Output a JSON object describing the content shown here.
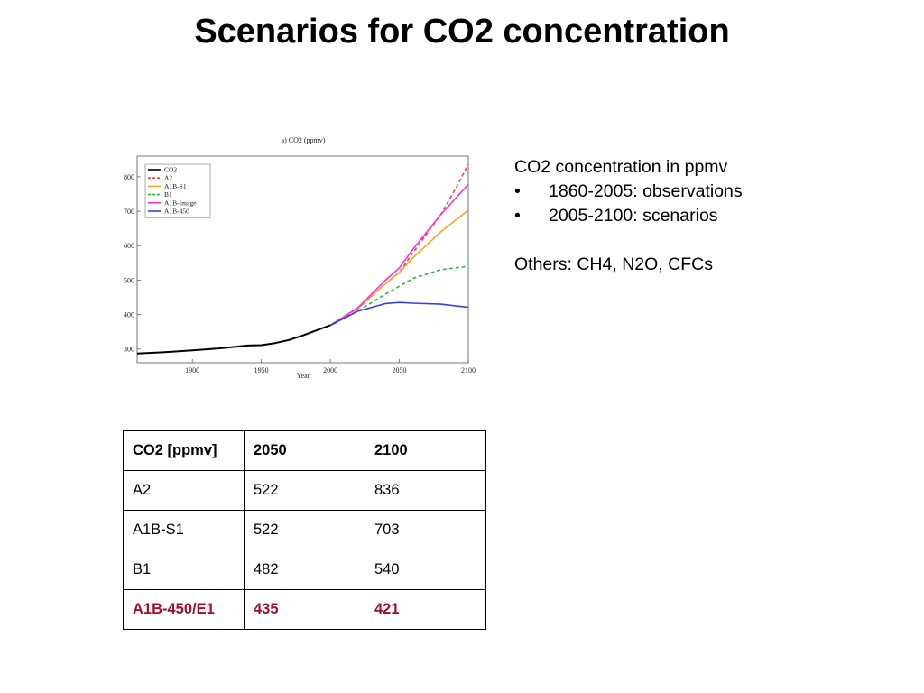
{
  "slide": {
    "title": "Scenarios for CO2 concentration"
  },
  "notes": {
    "heading": "CO2 concentration in ppmv",
    "bullets": [
      "1860-2005: observations",
      "2005-2100: scenarios"
    ],
    "bullet_symbol": "•",
    "others": "Others: CH4, N2O, CFCs"
  },
  "table": {
    "header": [
      "CO2 [ppmv]",
      "2050",
      "2100"
    ],
    "rows": [
      [
        "A2",
        "522",
        "836"
      ],
      [
        "A1B-S1",
        "522",
        "703"
      ],
      [
        "B1",
        "482",
        "540"
      ],
      [
        "A1B-450/E1",
        "435",
        "421"
      ]
    ],
    "highlight_color": "#a0102a"
  },
  "chart_data": {
    "type": "line",
    "title": "a) CO2 (ppmv)",
    "xlabel": "Year",
    "ylabel": "",
    "xlim": [
      1860,
      2100
    ],
    "ylim": [
      260,
      860
    ],
    "x_ticks": [
      1900,
      1950,
      2000,
      2050,
      2100
    ],
    "y_ticks": [
      300,
      400,
      500,
      600,
      700,
      800
    ],
    "legend_position": "top-left",
    "series": [
      {
        "name": "CO2",
        "color": "#000000",
        "dash": "solid",
        "x": [
          1860,
          1880,
          1900,
          1920,
          1940,
          1950,
          1960,
          1970,
          1980,
          1990,
          2000,
          2005
        ],
        "y": [
          287,
          291,
          296,
          302,
          310,
          311,
          317,
          326,
          339,
          354,
          369,
          379
        ]
      },
      {
        "name": "A2",
        "color": "#e8453c",
        "dash": "dashed",
        "x": [
          2000,
          2020,
          2040,
          2050,
          2060,
          2080,
          2090,
          2100
        ],
        "y": [
          369,
          417,
          490,
          522,
          580,
          690,
          760,
          836
        ]
      },
      {
        "name": "A1B-S1",
        "color": "#f5a623",
        "dash": "solid",
        "x": [
          2000,
          2020,
          2040,
          2050,
          2060,
          2080,
          2100
        ],
        "y": [
          369,
          418,
          490,
          522,
          565,
          640,
          703
        ]
      },
      {
        "name": "B1",
        "color": "#2db34a",
        "dash": "dashed",
        "x": [
          2000,
          2020,
          2040,
          2050,
          2060,
          2080,
          2100
        ],
        "y": [
          369,
          410,
          460,
          482,
          505,
          530,
          540
        ]
      },
      {
        "name": "A1B-Image",
        "color": "#ff33dd",
        "dash": "solid",
        "x": [
          2000,
          2020,
          2040,
          2050,
          2060,
          2080,
          2100
        ],
        "y": [
          369,
          420,
          500,
          535,
          590,
          690,
          778
        ]
      },
      {
        "name": "A1B-450",
        "color": "#3344dd",
        "dash": "solid",
        "x": [
          2000,
          2020,
          2040,
          2050,
          2060,
          2080,
          2100
        ],
        "y": [
          369,
          410,
          432,
          435,
          433,
          430,
          421
        ]
      }
    ]
  }
}
